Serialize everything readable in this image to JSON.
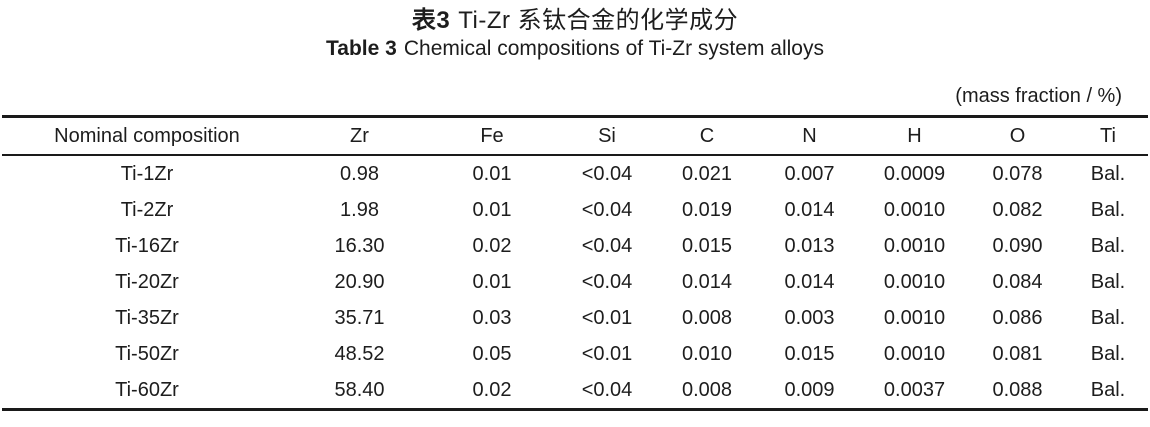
{
  "caption": {
    "chinese_prefix": "表3",
    "chinese_title": "Ti-Zr 系钛合金的化学成分",
    "english_prefix": "Table 3",
    "english_title": "Chemical compositions of Ti-Zr system alloys",
    "unit_note": "(mass fraction / %)"
  },
  "table": {
    "columns": [
      "Nominal composition",
      "Zr",
      "Fe",
      "Si",
      "C",
      "N",
      "H",
      "O",
      "Ti"
    ],
    "rows": [
      [
        "Ti-1Zr",
        "0.98",
        "0.01",
        "<0.04",
        "0.021",
        "0.007",
        "0.0009",
        "0.078",
        "Bal."
      ],
      [
        "Ti-2Zr",
        "1.98",
        "0.01",
        "<0.04",
        "0.019",
        "0.014",
        "0.0010",
        "0.082",
        "Bal."
      ],
      [
        "Ti-16Zr",
        "16.30",
        "0.02",
        "<0.04",
        "0.015",
        "0.013",
        "0.0010",
        "0.090",
        "Bal."
      ],
      [
        "Ti-20Zr",
        "20.90",
        "0.01",
        "<0.04",
        "0.014",
        "0.014",
        "0.0010",
        "0.084",
        "Bal."
      ],
      [
        "Ti-35Zr",
        "35.71",
        "0.03",
        "<0.01",
        "0.008",
        "0.003",
        "0.0010",
        "0.086",
        "Bal."
      ],
      [
        "Ti-50Zr",
        "48.52",
        "0.05",
        "<0.01",
        "0.010",
        "0.015",
        "0.0010",
        "0.081",
        "Bal."
      ],
      [
        "Ti-60Zr",
        "58.40",
        "0.02",
        "<0.04",
        "0.008",
        "0.009",
        "0.0037",
        "0.088",
        "Bal."
      ]
    ]
  },
  "colors": {
    "background": "#ffffff",
    "text": "#1d1d1d",
    "rule": "#1a1a1a"
  }
}
